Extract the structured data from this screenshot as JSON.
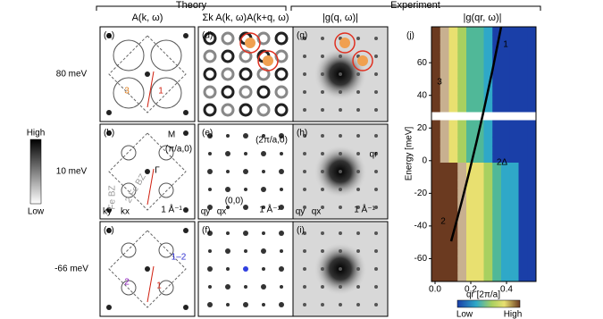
{
  "groups": {
    "theory": "Theory",
    "experiment": "Experiment"
  },
  "columns": [
    "A(k, ω)",
    "Σk A(k, ω)A(k+q, ω)",
    "|g(q, ω)|",
    "|g(qr, ω)|"
  ],
  "rows": [
    "80 meV",
    "10 meV",
    "-66 meV"
  ],
  "colorbar": {
    "high": "High",
    "low": "Low"
  },
  "panels": {
    "a": {
      "label": "(a)",
      "annotations": [
        "3",
        "1"
      ]
    },
    "b": {
      "label": "(b)",
      "annotations": [
        "M",
        "(π/a,0)",
        "Γ",
        "2 Fe BZ",
        "Fe BZ",
        "ky",
        "kx",
        "1 Å⁻¹"
      ]
    },
    "c": {
      "label": "(c)",
      "annotations": [
        "1–2",
        "2",
        "1"
      ]
    },
    "d": {
      "label": "(d)",
      "annotations": []
    },
    "e": {
      "label": "(e)",
      "annotations": [
        "(2π/a,0)",
        "(0,0)",
        "qy",
        "qx",
        "1 Å⁻¹"
      ]
    },
    "f": {
      "label": "(f)",
      "annotations": []
    },
    "g": {
      "label": "(g)",
      "annotations": []
    },
    "h": {
      "label": "(h)",
      "annotations": [
        "qr",
        "qy",
        "qx",
        "1 Å⁻¹"
      ]
    },
    "i": {
      "label": "(i)",
      "annotations": []
    }
  },
  "panel_j": {
    "label": "(j)",
    "ylabel": "Energy [meV]",
    "xlabel": "qr [2π/a]",
    "ylim": [
      -74,
      82
    ],
    "yticks": [
      -60,
      -40,
      -20,
      0,
      20,
      40,
      60
    ],
    "xlim": [
      -0.02,
      0.565
    ],
    "xticks": [
      {
        "value": 0,
        "label": "0.0"
      },
      {
        "value": 0.2,
        "label": "0.2"
      },
      {
        "value": 0.4,
        "label": "0.4"
      }
    ],
    "annotations": [
      "1",
      "3",
      "2Δ",
      "2"
    ],
    "colorbar": {
      "low": "Low",
      "high": "High"
    }
  }
}
